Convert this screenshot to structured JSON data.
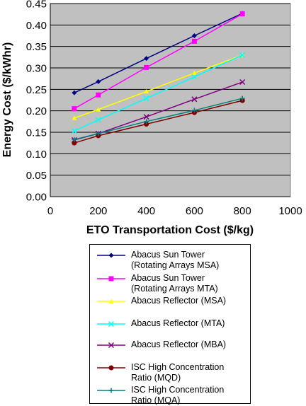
{
  "chart_data": {
    "type": "line",
    "title": "",
    "xlabel": "ETO Transportation Cost ($/kg)",
    "ylabel": "Energy Cost ($/kWhr)",
    "xlim": [
      0,
      1000
    ],
    "ylim": [
      0,
      0.45
    ],
    "x_ticks": [
      "0",
      "200",
      "400",
      "600",
      "800",
      "1000"
    ],
    "y_ticks": [
      "0.00",
      "0.05",
      "0.10",
      "0.15",
      "0.20",
      "0.25",
      "0.30",
      "0.35",
      "0.40",
      "0.45"
    ],
    "grid": "horizontal",
    "plot_background": "#c0c0c0",
    "legend_position": "below",
    "x": [
      100,
      200,
      400,
      600,
      800
    ],
    "series": [
      {
        "name": "Abacus Sun Tower\n(Rotating Arrays MSA)",
        "color": "#000080",
        "marker": "diamond",
        "values": [
          0.242,
          0.268,
          0.322,
          0.375,
          0.427
        ]
      },
      {
        "name": "Abacus Sun Tower\n(Rotating Arrays MTA)",
        "color": "#ff00ff",
        "marker": "square",
        "values": [
          0.205,
          0.237,
          0.301,
          0.362,
          0.426
        ]
      },
      {
        "name": "Abacus Reflector (MSA)",
        "color": "#ffff00",
        "marker": "triangle",
        "values": [
          0.183,
          0.203,
          0.245,
          0.288,
          0.33
        ]
      },
      {
        "name": "Abacus Reflector (MTA)",
        "color": "#00ffff",
        "marker": "x",
        "values": [
          0.153,
          0.179,
          0.229,
          0.279,
          0.33
        ]
      },
      {
        "name": "Abacus Reflector (MBA)",
        "color": "#800080",
        "marker": "x",
        "values": [
          0.132,
          0.147,
          0.186,
          0.227,
          0.267
        ]
      },
      {
        "name": "ISC High Concentration\nRatio (MQD)",
        "color": "#800000",
        "marker": "circle",
        "values": [
          0.125,
          0.142,
          0.169,
          0.196,
          0.224
        ]
      },
      {
        "name": "ISC High Concentration\nRatio (MQA)",
        "color": "#008080",
        "marker": "plus",
        "values": [
          0.133,
          0.147,
          0.175,
          0.201,
          0.229
        ]
      }
    ]
  }
}
